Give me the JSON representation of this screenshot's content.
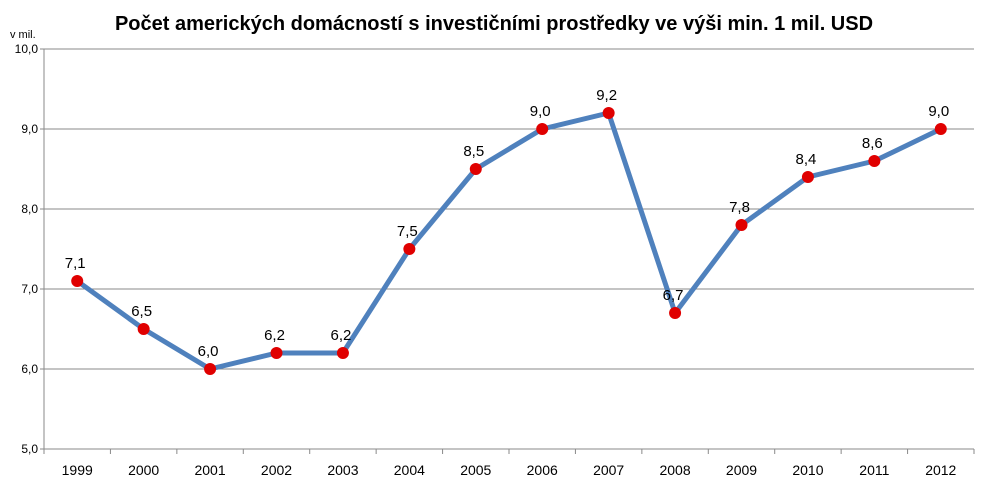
{
  "chart_data": {
    "type": "line",
    "title": "Počet amerických domácností s investičními prostředky ve výši min. 1 mil. USD",
    "unit_label": "v mil.",
    "xlabel": "",
    "ylabel": "",
    "ylim": [
      5.0,
      10.0
    ],
    "y_ticks": [
      "5,0",
      "6,0",
      "7,0",
      "8,0",
      "9,0",
      "10,0"
    ],
    "grid": true,
    "legend": "none",
    "categories": [
      "1999",
      "2000",
      "2001",
      "2002",
      "2003",
      "2004",
      "2005",
      "2006",
      "2007",
      "2008",
      "2009",
      "2010",
      "2011",
      "2012"
    ],
    "series": [
      {
        "values": [
          7.1,
          6.5,
          6.0,
          6.2,
          6.2,
          7.5,
          8.5,
          9.0,
          9.2,
          6.7,
          7.8,
          8.4,
          8.6,
          9.0
        ],
        "data_labels": [
          "7,1",
          "6,5",
          "6,0",
          "6,2",
          "6,2",
          "7,5",
          "8,5",
          "9,0",
          "9,2",
          "6,7",
          "7,8",
          "8,4",
          "8,6",
          "9,0"
        ],
        "line_color": "#4F81BD",
        "marker_color": "#E00000"
      }
    ]
  }
}
